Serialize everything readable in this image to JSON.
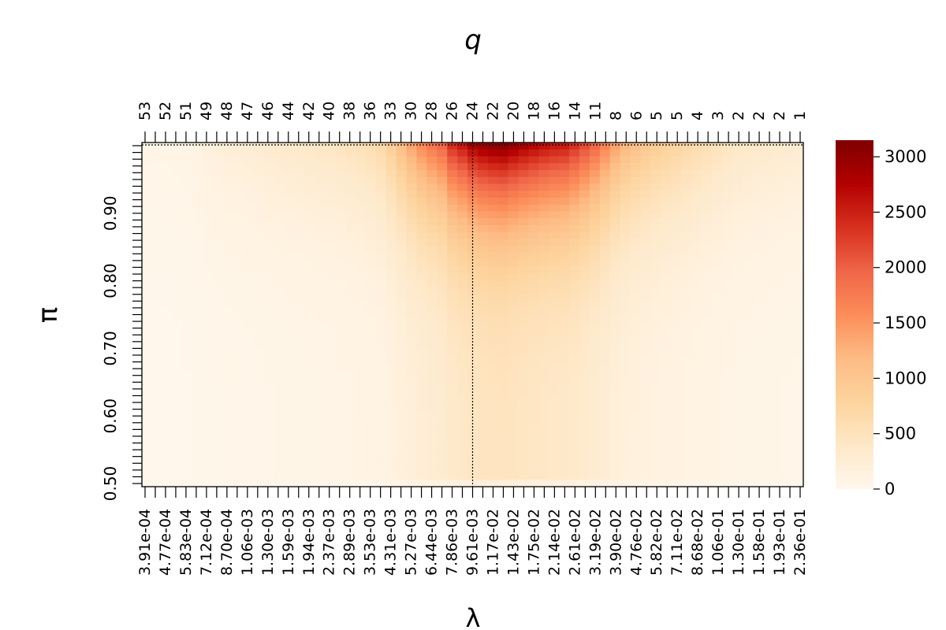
{
  "chart_data": {
    "type": "heatmap",
    "title": "",
    "xlabel": "λ",
    "ylabel": "π",
    "x2label": "q",
    "x_tick_labels": [
      "3.91e-04",
      "4.77e-04",
      "5.83e-04",
      "7.12e-04",
      "8.70e-04",
      "1.06e-03",
      "1.30e-03",
      "1.59e-03",
      "1.94e-03",
      "2.37e-03",
      "2.89e-03",
      "3.53e-03",
      "4.31e-03",
      "5.27e-03",
      "6.44e-03",
      "7.86e-03",
      "9.61e-03",
      "1.17e-02",
      "1.43e-02",
      "1.75e-02",
      "2.14e-02",
      "2.61e-02",
      "3.19e-02",
      "3.90e-02",
      "4.76e-02",
      "5.82e-02",
      "7.11e-02",
      "8.68e-02",
      "1.06e-01",
      "1.30e-01",
      "1.58e-01",
      "1.93e-01",
      "2.36e-01"
    ],
    "top_tick_labels": [
      "53",
      "52",
      "51",
      "49",
      "48",
      "47",
      "46",
      "44",
      "42",
      "40",
      "38",
      "36",
      "33",
      "30",
      "28",
      "26",
      "24",
      "22",
      "20",
      "18",
      "16",
      "14",
      "11",
      "8",
      "6",
      "5",
      "5",
      "4",
      "3",
      "2",
      "2",
      "2",
      "1"
    ],
    "y_tick_labels": [
      "0.50",
      "0.60",
      "0.70",
      "0.80",
      "0.90"
    ],
    "y_ticks": [
      0.5,
      0.6,
      0.7,
      0.8,
      0.9
    ],
    "ylim": [
      0.5,
      1.0
    ],
    "n_columns": 65,
    "n_rows": 50,
    "colorbar": {
      "ticks": [
        0,
        500,
        1000,
        1500,
        2000,
        2500,
        3000
      ],
      "tick_labels": [
        "0",
        "500",
        "1000",
        "1500",
        "2000",
        "2500",
        "3000"
      ],
      "range": [
        0,
        3150
      ],
      "colors": [
        "#fff7ec",
        "#fee8c8",
        "#fdd49e",
        "#fdbb84",
        "#fc8d59",
        "#ef6548",
        "#d7301f",
        "#b30000",
        "#7f0000"
      ]
    },
    "selected_lambda_index": 32,
    "selected_lambda_label": "9.61e-03",
    "selected_pi": 1.0,
    "value_profile": {
      "note_free": true,
      "column_peak_values": [
        60,
        60,
        70,
        90,
        180,
        220,
        300,
        330,
        380,
        420,
        450,
        500,
        520,
        600,
        650,
        780,
        1150,
        1650,
        2050,
        2350,
        2500,
        2900,
        3100,
        3150,
        2950,
        2800,
        2650,
        2600,
        2300,
        1950,
        1500,
        1200,
        1050,
        900,
        800,
        700,
        600,
        500,
        420,
        380,
        350,
        320,
        300
      ]
    }
  }
}
